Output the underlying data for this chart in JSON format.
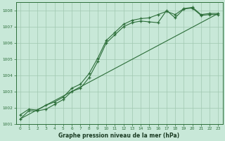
{
  "xlabel": "Graphe pression niveau de la mer (hPa)",
  "background_color": "#c8e8d8",
  "grid_color": "#a0c8b0",
  "line_color": "#2d6e3a",
  "spine_color": "#2d6e3a",
  "xlim": [
    -0.5,
    23.5
  ],
  "ylim": [
    1001,
    1008.5
  ],
  "xticks": [
    0,
    1,
    2,
    3,
    4,
    5,
    6,
    7,
    8,
    9,
    10,
    11,
    12,
    13,
    14,
    15,
    16,
    17,
    18,
    19,
    20,
    21,
    22,
    23
  ],
  "yticks": [
    1001,
    1002,
    1003,
    1004,
    1005,
    1006,
    1007,
    1008
  ],
  "series1_x": [
    0,
    1,
    2,
    3,
    4,
    5,
    6,
    7,
    8,
    9,
    10,
    11,
    12,
    13,
    14,
    15,
    16,
    17,
    18,
    19,
    20,
    21,
    22,
    23
  ],
  "series1_y": [
    1001.3,
    1001.8,
    1001.8,
    1001.9,
    1002.2,
    1002.5,
    1003.0,
    1003.2,
    1003.85,
    1004.85,
    1006.0,
    1006.5,
    1007.0,
    1007.25,
    1007.35,
    1007.3,
    1007.25,
    1008.0,
    1007.55,
    1008.1,
    1008.15,
    1007.7,
    1007.75,
    1007.75
  ],
  "series2_x": [
    0,
    1,
    2,
    3,
    4,
    5,
    6,
    7,
    8,
    9,
    10,
    11,
    12,
    13,
    14,
    15,
    16,
    17,
    18,
    19,
    20,
    21,
    22,
    23
  ],
  "series2_y": [
    1001.55,
    1001.9,
    1001.85,
    1002.15,
    1002.35,
    1002.65,
    1003.2,
    1003.45,
    1004.1,
    1005.05,
    1006.15,
    1006.65,
    1007.15,
    1007.4,
    1007.5,
    1007.55,
    1007.75,
    1007.95,
    1007.75,
    1008.12,
    1008.2,
    1007.75,
    1007.82,
    1007.82
  ],
  "series3_x": [
    0,
    23
  ],
  "series3_y": [
    1001.3,
    1007.82
  ]
}
